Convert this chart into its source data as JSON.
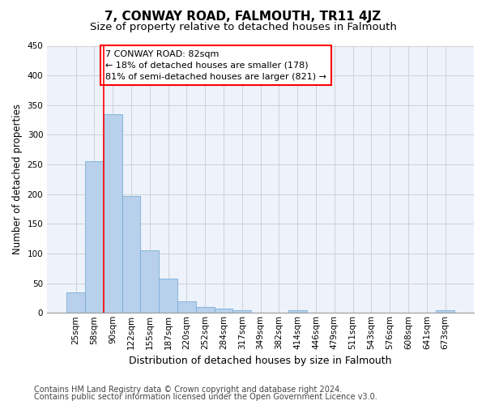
{
  "title": "7, CONWAY ROAD, FALMOUTH, TR11 4JZ",
  "subtitle": "Size of property relative to detached houses in Falmouth",
  "xlabel": "Distribution of detached houses by size in Falmouth",
  "ylabel": "Number of detached properties",
  "footnote1": "Contains HM Land Registry data © Crown copyright and database right 2024.",
  "footnote2": "Contains public sector information licensed under the Open Government Licence v3.0.",
  "categories": [
    "25sqm",
    "58sqm",
    "90sqm",
    "122sqm",
    "155sqm",
    "187sqm",
    "220sqm",
    "252sqm",
    "284sqm",
    "317sqm",
    "349sqm",
    "382sqm",
    "414sqm",
    "446sqm",
    "479sqm",
    "511sqm",
    "543sqm",
    "576sqm",
    "608sqm",
    "641sqm",
    "673sqm"
  ],
  "values": [
    35,
    255,
    335,
    197,
    105,
    57,
    20,
    10,
    7,
    5,
    0,
    0,
    4,
    0,
    0,
    0,
    0,
    0,
    0,
    0,
    4
  ],
  "bar_color": "#b8d0eb",
  "bar_edge_color": "#7aaed6",
  "red_line_x": 1.5,
  "annotation_text1": "7 CONWAY ROAD: 82sqm",
  "annotation_text2": "← 18% of detached houses are smaller (178)",
  "annotation_text3": "81% of semi-detached houses are larger (821) →",
  "annotation_box_color": "white",
  "annotation_box_edge": "red",
  "red_line_color": "red",
  "ylim": [
    0,
    450
  ],
  "yticks": [
    0,
    50,
    100,
    150,
    200,
    250,
    300,
    350,
    400,
    450
  ],
  "grid_color": "#cccccc",
  "background_color": "#edf2fb",
  "title_fontsize": 11,
  "subtitle_fontsize": 9.5,
  "ylabel_fontsize": 8.5,
  "xlabel_fontsize": 9,
  "tick_fontsize": 7.5,
  "annotation_fontsize": 8,
  "footnote_fontsize": 7
}
